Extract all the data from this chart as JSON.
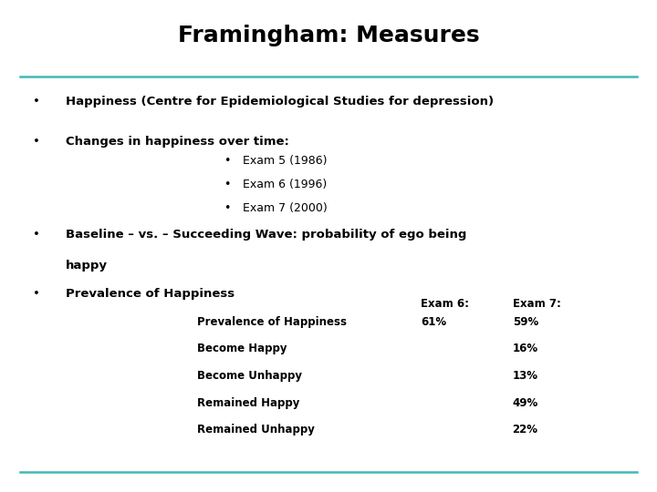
{
  "title": "Framingham: Measures",
  "background_color": "#ffffff",
  "title_color": "#000000",
  "title_fontsize": 18,
  "line_color": "#40b8b8",
  "bullet1": "Happiness (Centre for Epidemiological Studies for depression)",
  "bullet2_main": "Changes in happiness over time:",
  "bullet2_sub": [
    "Exam 5 (1986)",
    "Exam 6 (1996)",
    "Exam 7 (2000)"
  ],
  "bullet3_line1": "Baseline – vs. – Succeeding Wave: probability of ego being",
  "bullet3_line2": "happy",
  "bullet4_main": "Prevalence of Happiness",
  "table_headers": [
    "",
    "Exam 6:",
    "Exam 7:"
  ],
  "table_rows": [
    [
      "Prevalence of Happiness",
      "61%",
      "59%"
    ],
    [
      "Become Happy",
      "",
      "16%"
    ],
    [
      "Become Unhappy",
      "",
      "13%"
    ],
    [
      "Remained Happy",
      "",
      "49%"
    ],
    [
      "Remained Unhappy",
      "",
      "22%"
    ]
  ],
  "body_fontsize": 9.5,
  "sub_fontsize": 9,
  "table_header_fontsize": 8.5,
  "table_body_fontsize": 8.5,
  "text_color": "#000000"
}
